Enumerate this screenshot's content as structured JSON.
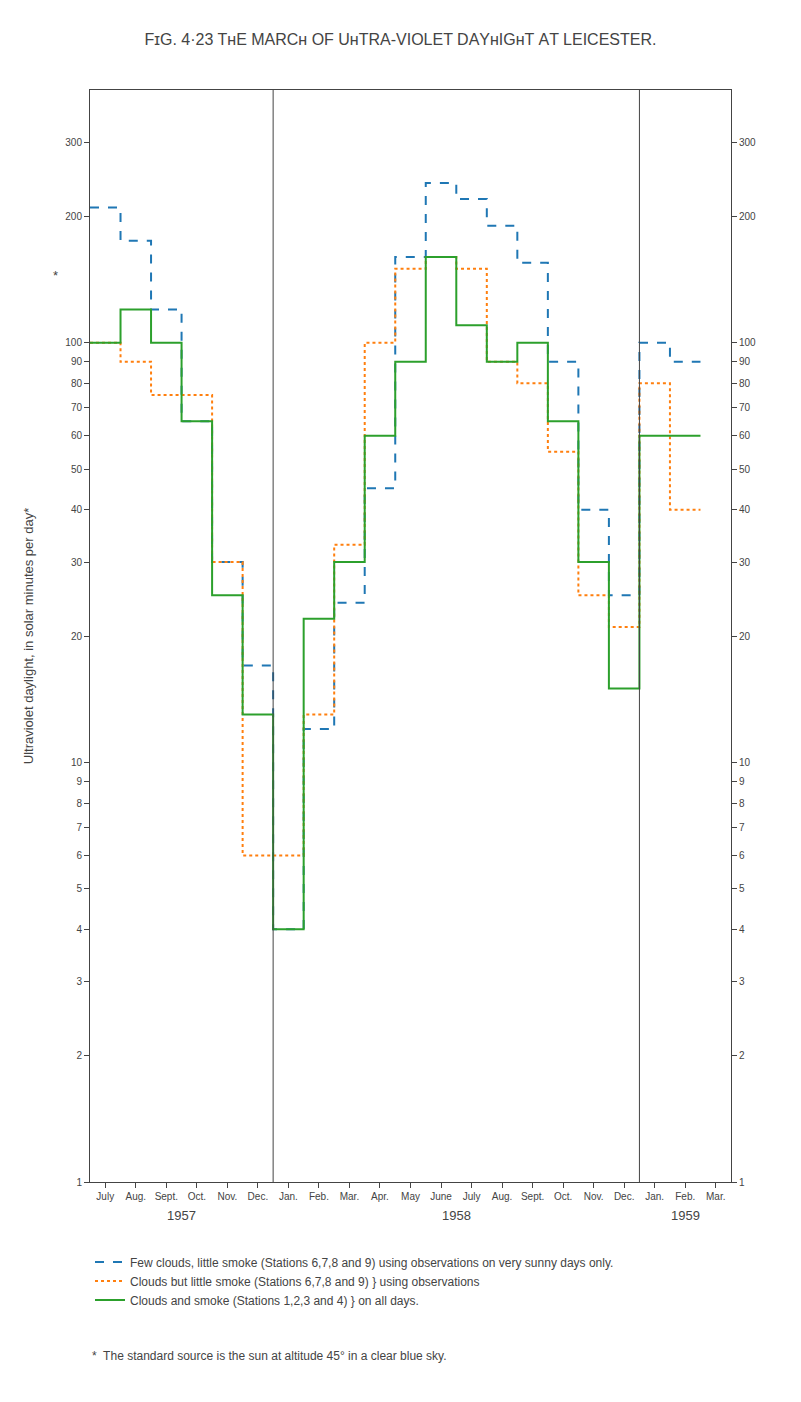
{
  "chart_data": {
    "type": "step",
    "title": "FɪG. 4·23 TʜE MΑRCʜ OF UʜTRA-VIOLET DΑYʜIGʜT ΑT LΕICΕSTΕR.",
    "y_label": "Ultraviolet daylight, in solar minutes per day*",
    "categories": [
      "July",
      "Aug.",
      "Sept.",
      "Oct.",
      "Nov.",
      "Dec.",
      "Jan.",
      "Feb.",
      "Mar.",
      "Apr.",
      "May",
      "June",
      "July",
      "Aug.",
      "Sept.",
      "Oct.",
      "Nov.",
      "Dec.",
      "Jan.",
      "Feb.",
      "Mar."
    ],
    "series": [
      {
        "name": "Few clouds, little smoke (Stations 6,7,8 and 9) using observations on very sunny days only.",
        "line_style": "dashed",
        "values": [
          210,
          175,
          120,
          65,
          30,
          17,
          4,
          12,
          24,
          45,
          160,
          240,
          220,
          190,
          155,
          90,
          40,
          25,
          100,
          90,
          null
        ]
      },
      {
        "name": "Clouds but little smoke (Stations 6,7,8 and 9) } using observations",
        "line_style": "dotted",
        "values": [
          100,
          90,
          75,
          75,
          30,
          6,
          6,
          13,
          33,
          100,
          150,
          160,
          150,
          90,
          80,
          55,
          25,
          21,
          80,
          40,
          null
        ]
      },
      {
        "name": "Clouds and smoke (Stations 1,2,3 and 4) } on all days.",
        "line_style": "solid",
        "values": [
          100,
          120,
          100,
          65,
          25,
          13,
          4,
          22,
          30,
          60,
          90,
          160,
          110,
          90,
          100,
          65,
          30,
          15,
          60,
          60,
          null
        ]
      }
    ],
    "ylim": [
      1,
      400
    ],
    "yticks": [
      1,
      2,
      3,
      4,
      5,
      6,
      7,
      8,
      9,
      10,
      20,
      30,
      40,
      50,
      60,
      70,
      80,
      90,
      100,
      200,
      300
    ],
    "y2lim": [
      1,
      400
    ],
    "y2ticks": [
      1,
      2,
      3,
      4,
      5,
      6,
      7,
      8,
      9,
      10,
      20,
      30,
      40,
      50,
      60,
      70,
      80,
      90,
      100,
      200,
      300
    ],
    "log": "y",
    "grid": false,
    "legend": "bottom",
    "annotations": [
      "1957",
      "1958",
      "1959",
      "*  The standard source is the sun at altitude 45° in a clear blue sky.",
      "*"
    ]
  }
}
